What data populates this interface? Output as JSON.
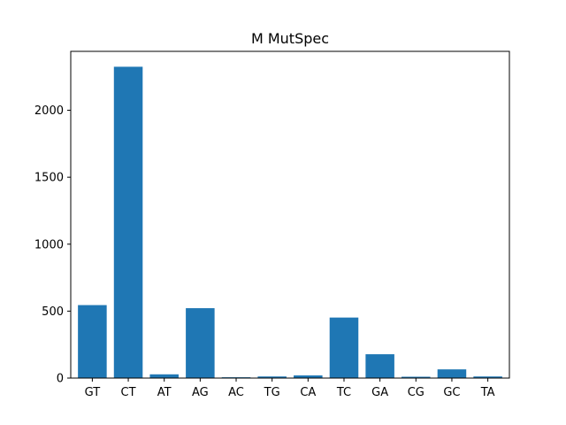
{
  "chart_data": {
    "type": "bar",
    "title": "M MutSpec",
    "xlabel": "",
    "ylabel": "",
    "categories": [
      "GT",
      "CT",
      "AT",
      "AG",
      "AC",
      "TG",
      "CA",
      "TC",
      "GA",
      "CG",
      "GC",
      "TA"
    ],
    "values": [
      545,
      2325,
      28,
      522,
      6,
      12,
      20,
      452,
      178,
      10,
      65,
      12
    ],
    "ylim": [
      0,
      2440
    ],
    "yticks": [
      0,
      500,
      1000,
      1500,
      2000
    ],
    "grid": false,
    "legend": "none",
    "bar_color": "#1f77b4"
  }
}
